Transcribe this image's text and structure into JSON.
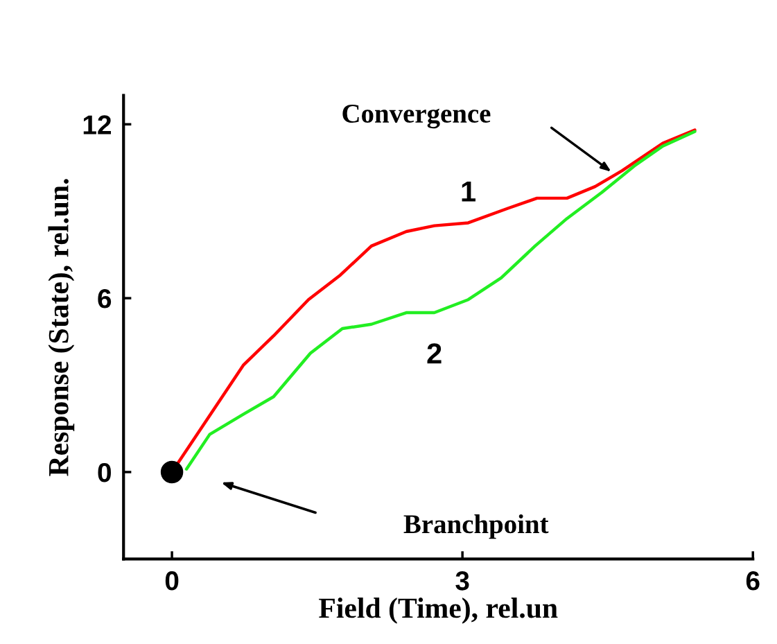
{
  "chart_data": {
    "type": "line",
    "xlabel": "Field (Time), rel.un",
    "ylabel": "Response (State), rel.un.",
    "xlim": [
      -0.5,
      6
    ],
    "ylim": [
      -3,
      13
    ],
    "xticks": [
      0,
      3,
      6
    ],
    "yticks": [
      0,
      6,
      12
    ],
    "grid": false,
    "legend": false,
    "marker": "none",
    "line_style": "solid",
    "series": [
      {
        "name": "1",
        "color": "#ff0000",
        "x": [
          0,
          0.74,
          1.05,
          1.41,
          1.74,
          2.06,
          2.42,
          2.71,
          3.06,
          3.47,
          3.77,
          4.08,
          4.37,
          4.65,
          5.07,
          5.4
        ],
        "values": [
          0,
          3.7,
          4.7,
          5.95,
          6.8,
          7.8,
          8.3,
          8.5,
          8.6,
          9.1,
          9.45,
          9.45,
          9.85,
          10.4,
          11.35,
          11.8
        ]
      },
      {
        "name": "2",
        "color": "#22ee22",
        "x": [
          0.15,
          0.39,
          0.74,
          1.05,
          1.43,
          1.76,
          2.06,
          2.42,
          2.71,
          3.06,
          3.4,
          3.75,
          4.08,
          4.44,
          4.79,
          5.07,
          5.4
        ],
        "values": [
          0.1,
          1.3,
          2.0,
          2.6,
          4.1,
          4.95,
          5.1,
          5.5,
          5.5,
          5.95,
          6.7,
          7.8,
          8.75,
          9.65,
          10.6,
          11.25,
          11.75
        ]
      },
      {
        "type": "scatter",
        "marker": "circle",
        "color": "#000000",
        "x": [
          0
        ],
        "values": [
          0
        ]
      }
    ],
    "annotations": [
      "Convergence",
      "Branchpoint"
    ]
  }
}
